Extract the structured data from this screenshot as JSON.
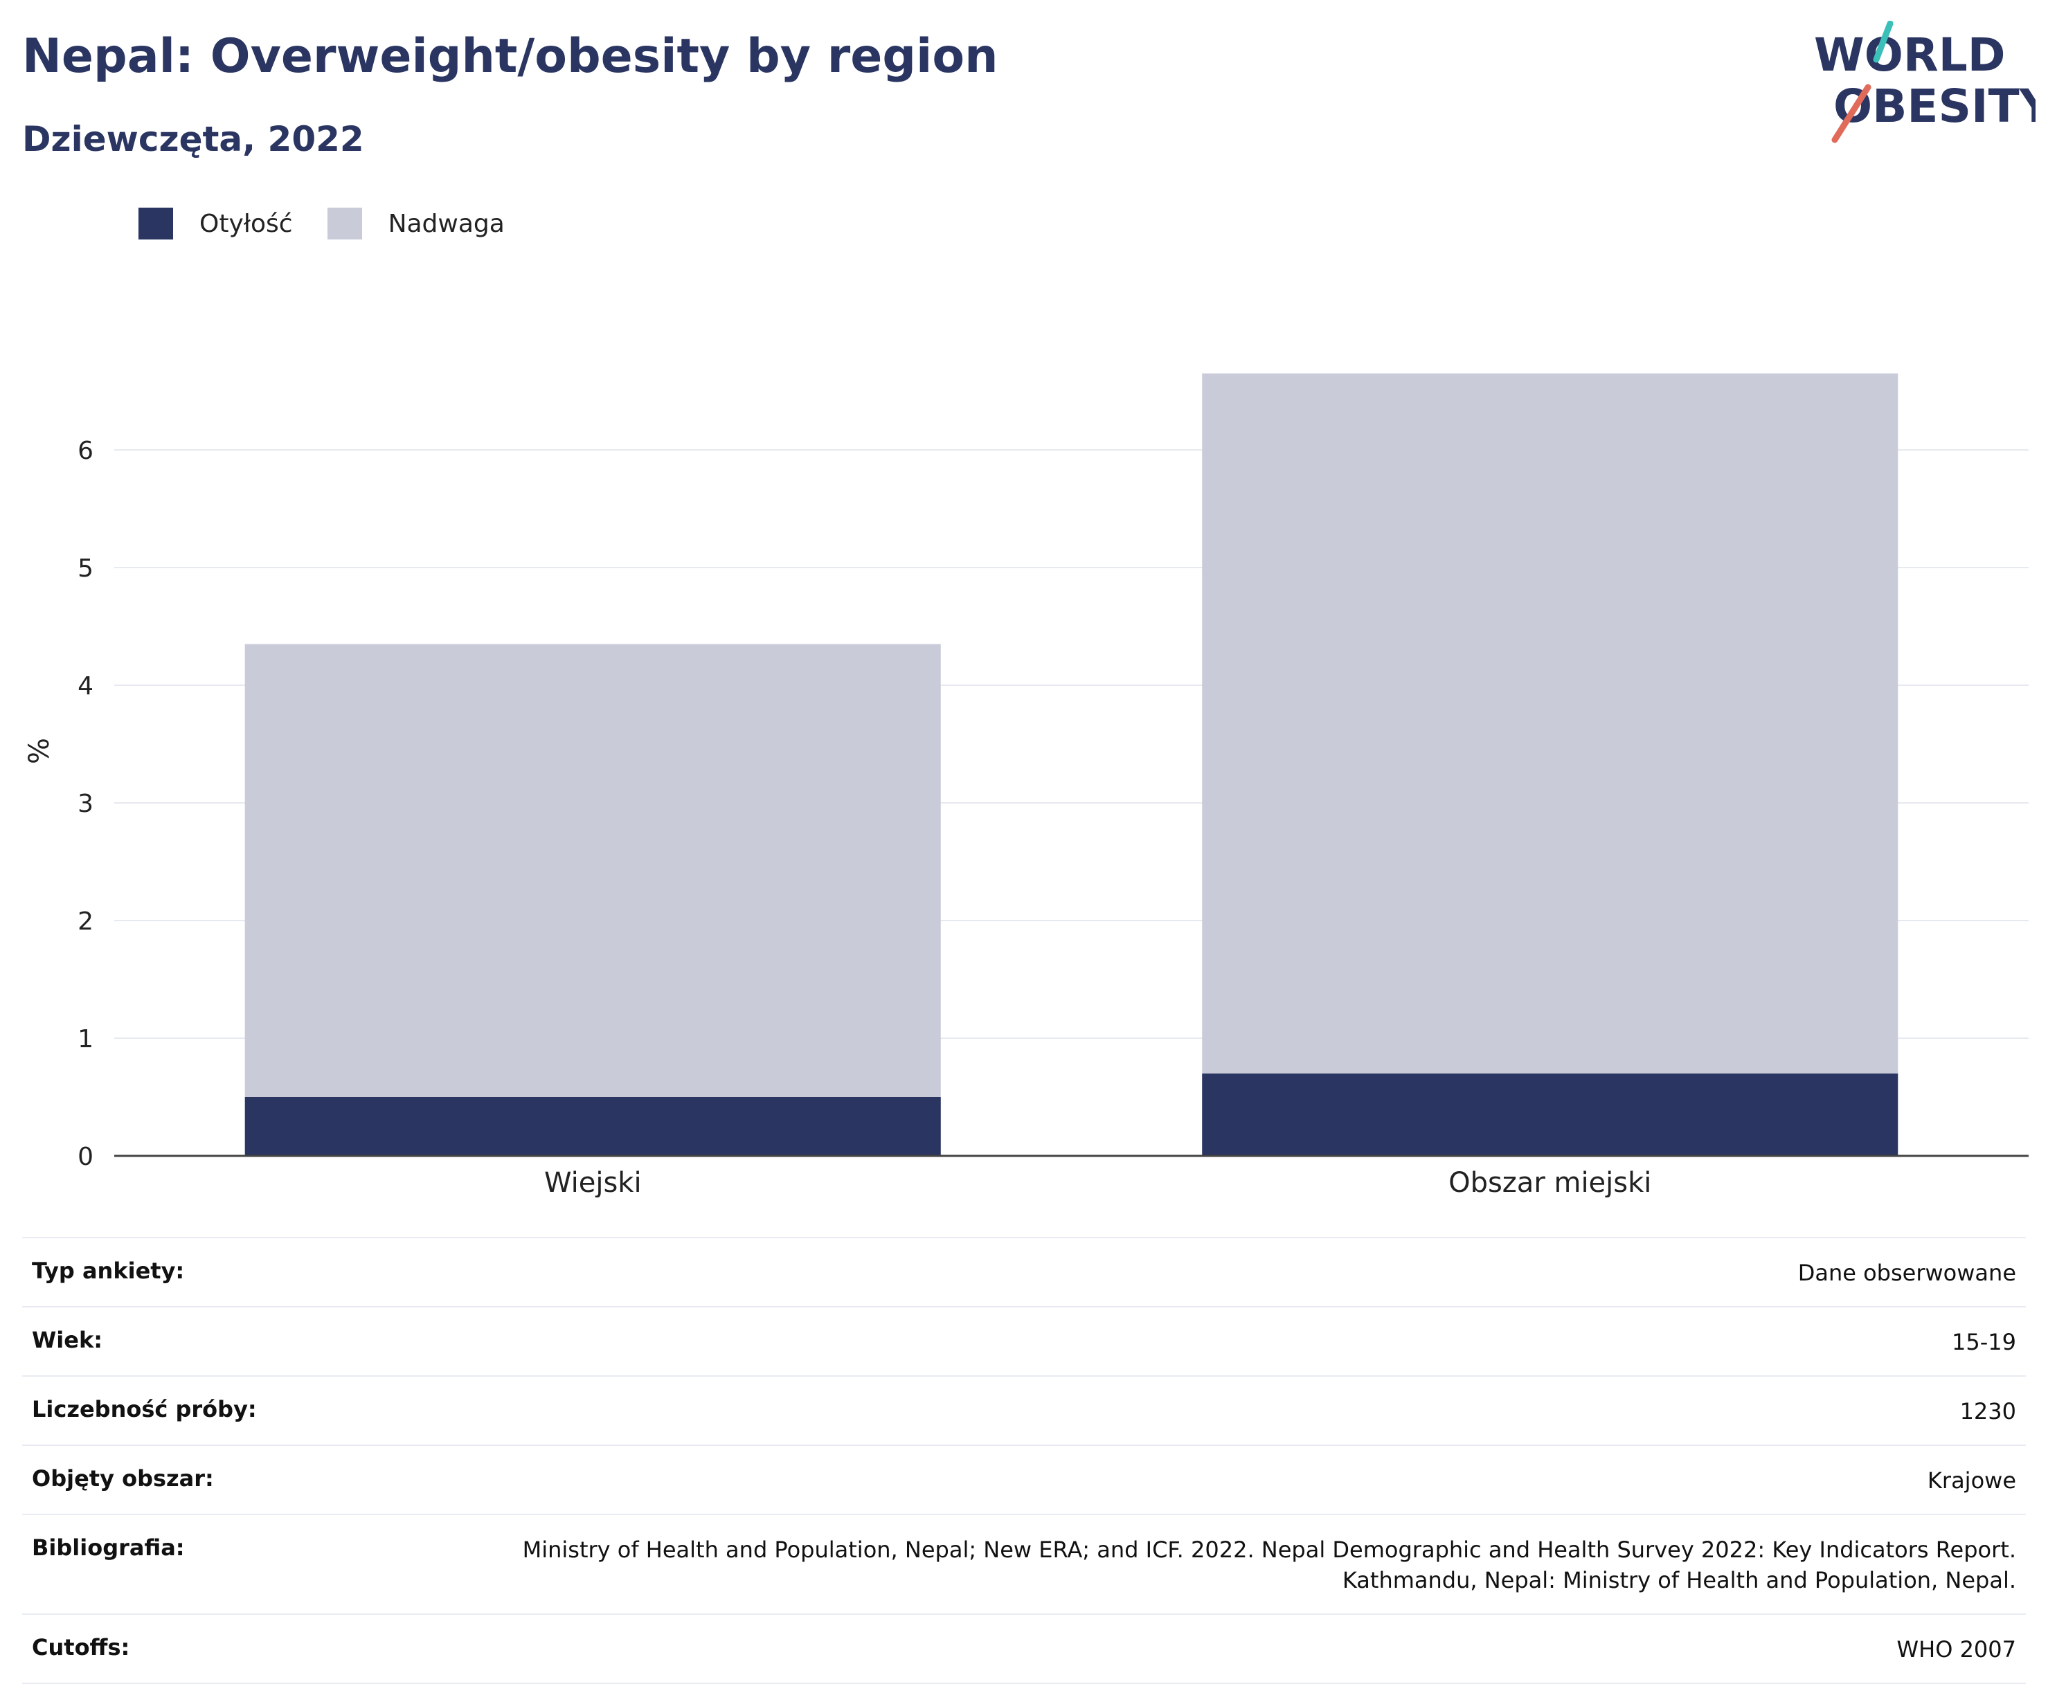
{
  "header": {
    "title": "Nepal: Overweight/obesity by region",
    "subtitle": "Dziewczęta, 2022",
    "logo_text": [
      "WORLD",
      "OBESITY"
    ]
  },
  "colors": {
    "title": "#2a3561",
    "obesity": "#2a3561",
    "overweight": "#c9ccd8",
    "logo_teal": "#3bbfb9",
    "logo_coral": "#e06b5a"
  },
  "chart_data": {
    "type": "bar",
    "stacked": true,
    "categories": [
      "Wiejski",
      "Obszar miejski"
    ],
    "series": [
      {
        "name": "Otyłość",
        "values": [
          0.5,
          0.7
        ]
      },
      {
        "name": "Nadwaga",
        "values": [
          3.85,
          5.95
        ]
      }
    ],
    "ylabel": "%",
    "ylim": [
      0,
      7
    ],
    "yticks": [
      0,
      1,
      2,
      3,
      4,
      5,
      6
    ],
    "grid": true,
    "legend_position": "top-left"
  },
  "details": [
    {
      "key": "Typ ankiety:",
      "value": [
        "Dane obserwowane"
      ]
    },
    {
      "key": "Wiek:",
      "value": [
        "15-19"
      ]
    },
    {
      "key": "Liczebność próby:",
      "value": [
        "1230"
      ]
    },
    {
      "key": "Objęty obszar:",
      "value": [
        "Krajowe"
      ]
    },
    {
      "key": "Bibliografia:",
      "value": [
        "Ministry of Health and Population, Nepal; New ERA; and ICF. 2022. Nepal Demographic and Health Survey 2022: Key Indicators Report.",
        "Kathmandu, Nepal: Ministry of Health and Population, Nepal."
      ]
    },
    {
      "key": "Cutoffs:",
      "value": [
        "WHO 2007"
      ]
    }
  ]
}
